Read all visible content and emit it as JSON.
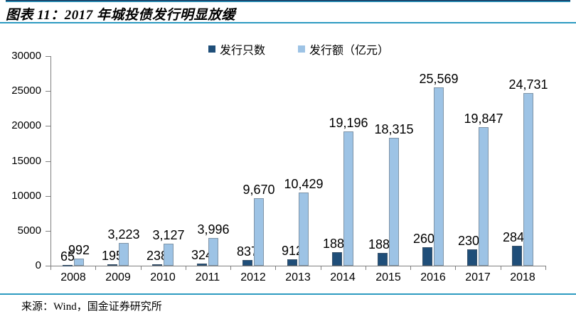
{
  "header": {
    "title": "图表 11：2017 年城投债发行明显放缓"
  },
  "legend": [
    {
      "label": "发行只数",
      "color": "#1F4E79"
    },
    {
      "label": "发行额（亿元）",
      "color": "#9DC3E5"
    }
  ],
  "footer": {
    "source": "来源：Wind，国金证券研究所"
  },
  "colors": {
    "accent_teal": "#2D9BC1",
    "top_rule_navy": "#17375E",
    "axis_gray": "#808080",
    "text": "#000000"
  },
  "chart_data": {
    "type": "bar",
    "title": "图表 11：2017 年城投债发行明显放缓",
    "categories": [
      "2008",
      "2009",
      "2010",
      "2011",
      "2012",
      "2013",
      "2014",
      "2015",
      "2016",
      "2017",
      "2018"
    ],
    "series": [
      {
        "id": "issue-count",
        "name": "发行只数",
        "color": "#1F4E79",
        "values": [
          65,
          195,
          238,
          324,
          837,
          912,
          1882,
          1880,
          2609,
          2305,
          2846
        ],
        "labels": [
          "65",
          "195",
          "238",
          "324",
          "837",
          "912",
          "1882",
          "1880",
          "2609",
          "2305",
          "2846"
        ]
      },
      {
        "id": "issue-amount",
        "name": "发行额（亿元）",
        "color": "#9DC3E5",
        "values": [
          992,
          3223,
          3127,
          3996,
          9670,
          10429,
          19196,
          18315,
          25569,
          19847,
          24731
        ],
        "labels": [
          "992",
          "3,223",
          "3,127",
          "3,996",
          "9,670",
          "10,429",
          "19,196",
          "18,315",
          "25,569",
          "19,847",
          "24,731"
        ]
      }
    ],
    "xlabel": "",
    "ylabel": "",
    "ylim": [
      0,
      30000
    ],
    "yticks": [
      0,
      5000,
      10000,
      15000,
      20000,
      25000,
      30000
    ],
    "grid": false,
    "legend_position": "top"
  }
}
